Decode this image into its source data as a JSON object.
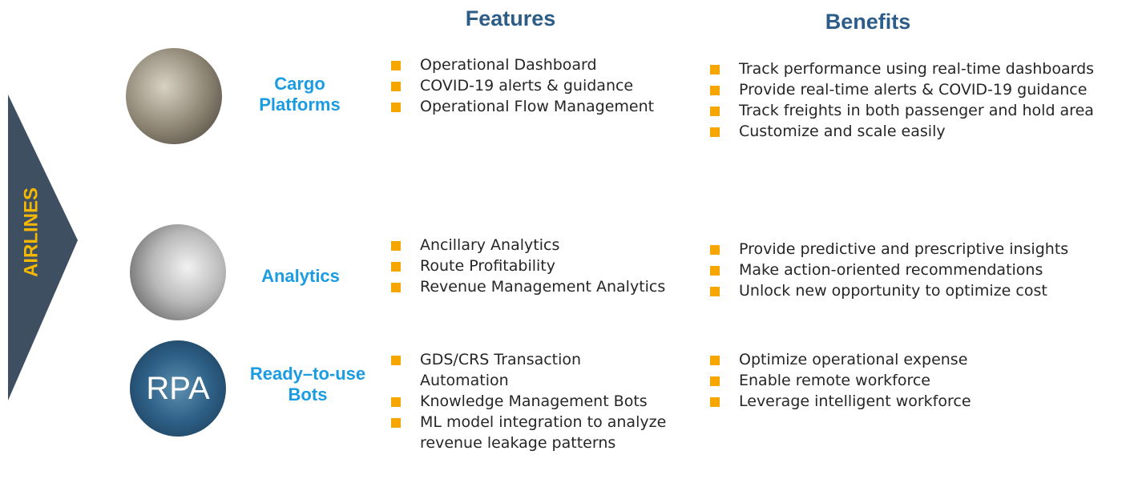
{
  "side_label": "AIRLINES",
  "headers": {
    "features": "Features",
    "benefits": "Benefits"
  },
  "rows": [
    {
      "name": "Cargo Platforms",
      "features": [
        "Operational Dashboard",
        "COVID-19  alerts & guidance",
        "Operational Flow Management"
      ],
      "benefits": [
        "Track performance using real-time dashboards",
        "Provide real-time alerts & COVID-19 guidance",
        "Track freights in both passenger and hold area",
        "Customize and scale easily"
      ]
    },
    {
      "name": "Analytics",
      "features": [
        "Ancillary Analytics",
        "Route Profitability",
        "Revenue Management Analytics"
      ],
      "benefits": [
        "Provide predictive and prescriptive insights",
        "Make action-oriented recommendations",
        "Unlock new opportunity to optimize cost"
      ]
    },
    {
      "name": "Ready–to-use Bots",
      "image_text": "RPA",
      "features": [
        "GDS/CRS Transaction Automation",
        "Knowledge Management Bots",
        "ML model integration to analyze revenue leakage patterns"
      ],
      "benefits": [
        "Optimize operational expense",
        "Enable remote workforce",
        "Leverage intelligent workforce"
      ]
    }
  ]
}
